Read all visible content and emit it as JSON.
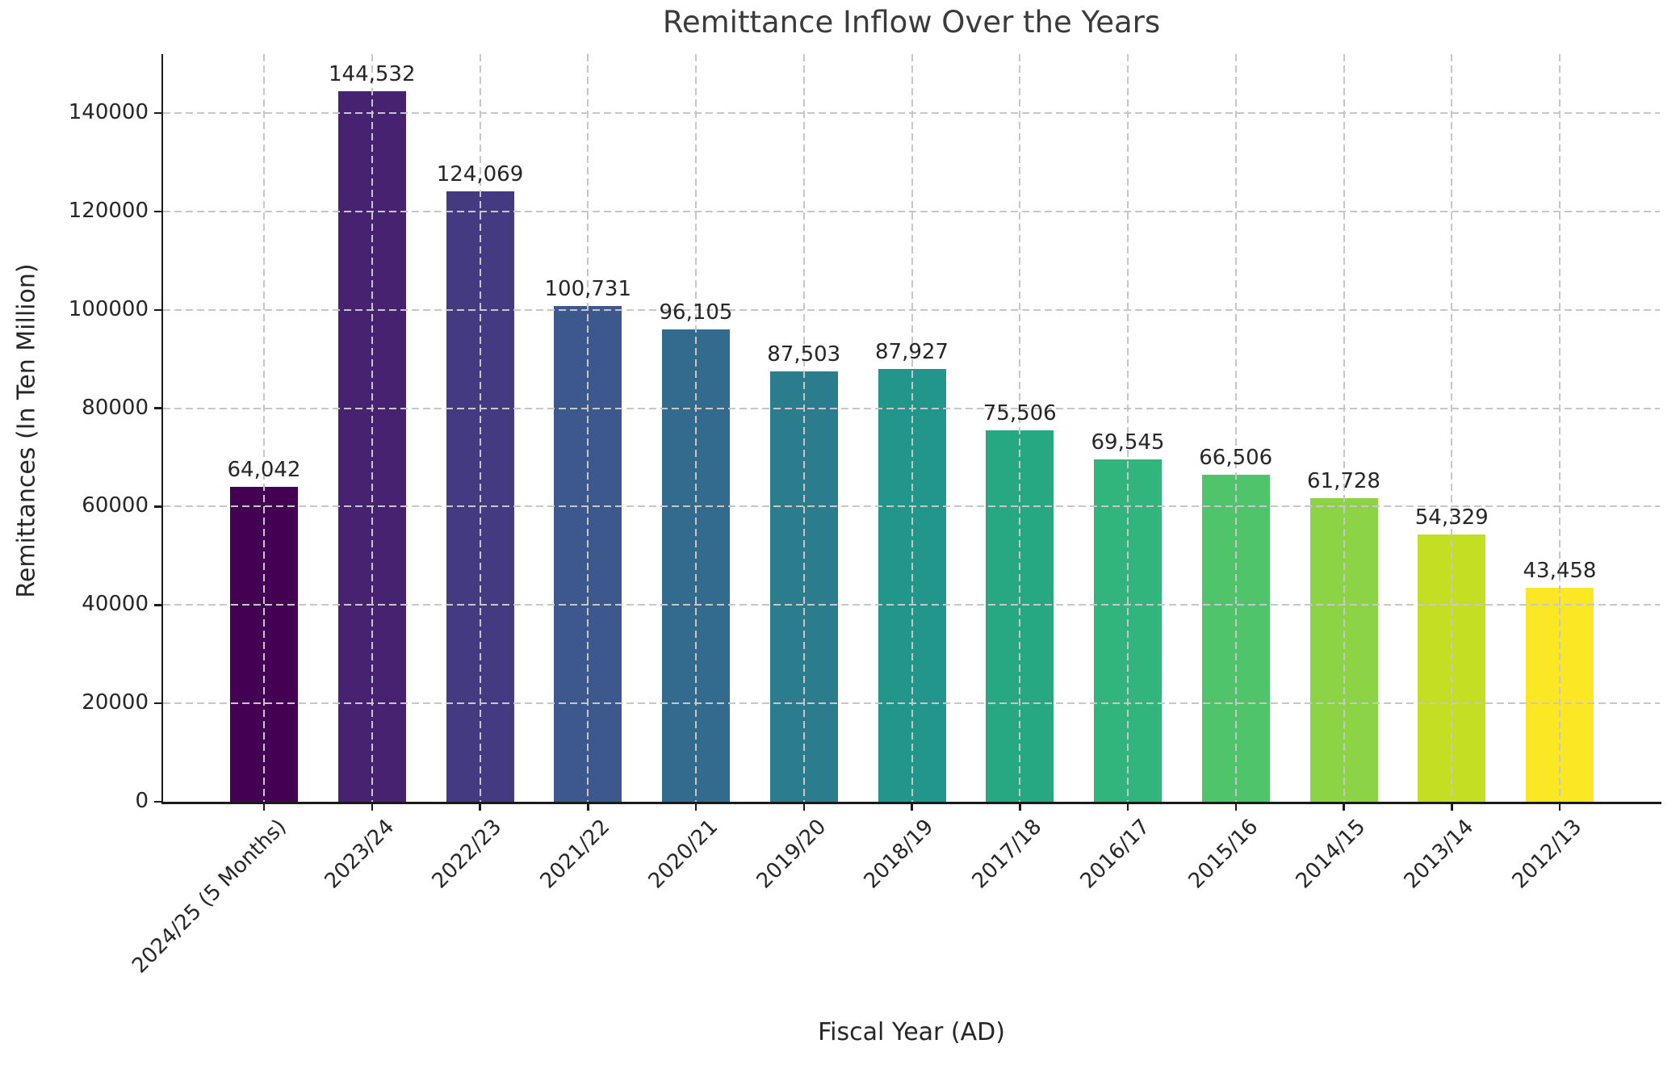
{
  "chart_data": {
    "type": "bar",
    "title": "Remittance Inflow Over the Years",
    "xlabel": "Fiscal Year (AD)",
    "ylabel": "Remittances (In Ten Million)",
    "categories": [
      "2024/25 (5 Months)",
      "2023/24",
      "2022/23",
      "2021/22",
      "2020/21",
      "2019/20",
      "2018/19",
      "2017/18",
      "2016/17",
      "2015/16",
      "2014/15",
      "2013/14",
      "2012/13"
    ],
    "values": [
      64042,
      144532,
      124069,
      100731,
      96105,
      87503,
      87927,
      75506,
      69545,
      66506,
      61728,
      54329,
      43458
    ],
    "value_labels": [
      "64,042",
      "144,532",
      "124,069",
      "100,731",
      "96,105",
      "87,503",
      "87,927",
      "75,506",
      "69,545",
      "66,506",
      "61,728",
      "54,329",
      "43,458"
    ],
    "bar_colors": [
      "#440154",
      "#462270",
      "#443a82",
      "#3c588c",
      "#336b8e",
      "#2b7d8e",
      "#23968b",
      "#26a883",
      "#31b57c",
      "#50c46a",
      "#8cd446",
      "#c4de24",
      "#fce724"
    ],
    "colormap": "viridis",
    "yticks": [
      0,
      20000,
      40000,
      60000,
      80000,
      100000,
      120000,
      140000
    ],
    "ytick_labels": [
      "0",
      "20000",
      "40000",
      "60000",
      "80000",
      "100000",
      "120000",
      "140000"
    ],
    "ylim": [
      0,
      152000
    ],
    "grid": {
      "on": true,
      "style": "dashed",
      "color": "#c7c7c7",
      "above_bars": true
    },
    "legend_position": "none",
    "xtick_rotation_deg": 45
  },
  "style_colors": {
    "background": "#ffffff",
    "spine": "#1a1a1a",
    "tick_text": "#262626",
    "title_text": "#3a3a3a"
  }
}
